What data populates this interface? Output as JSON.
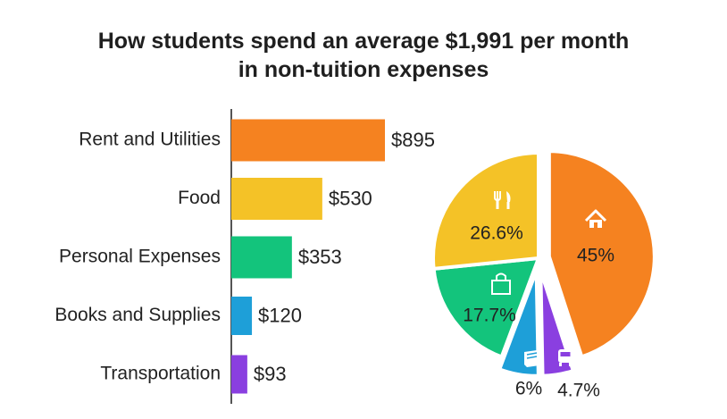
{
  "title_line1": "How students spend an average $1,991 per month",
  "title_line2": "in non-tuition expenses",
  "chart_data": [
    {
      "type": "bar",
      "orientation": "horizontal",
      "categories": [
        "Rent and Utilities",
        "Food",
        "Personal Expenses",
        "Books and Supplies",
        "Transportation"
      ],
      "values": [
        895,
        530,
        353,
        120,
        93
      ],
      "value_labels": [
        "$895",
        "$530",
        "$353",
        "$120",
        "$93"
      ],
      "colors": [
        "#f58220",
        "#f4c227",
        "#13c47c",
        "#1e9fd8",
        "#8a3fe0"
      ],
      "xlim": [
        0,
        1000
      ],
      "grid": false
    },
    {
      "type": "pie",
      "categories": [
        "Rent and Utilities",
        "Transportation",
        "Books and Supplies",
        "Personal Expenses",
        "Food"
      ],
      "values": [
        45,
        4.7,
        6,
        17.7,
        26.6
      ],
      "value_labels": [
        "45%",
        "4.7%",
        "6%",
        "17.7%",
        "26.6%"
      ],
      "icons": [
        "house-icon",
        "bus-icon",
        "book-icon",
        "shopping-bag-icon",
        "fork-knife-icon"
      ],
      "colors": [
        "#f58220",
        "#8a3fe0",
        "#1e9fd8",
        "#13c47c",
        "#f4c227"
      ],
      "exploded": [
        true,
        true,
        true,
        false,
        false
      ]
    }
  ]
}
